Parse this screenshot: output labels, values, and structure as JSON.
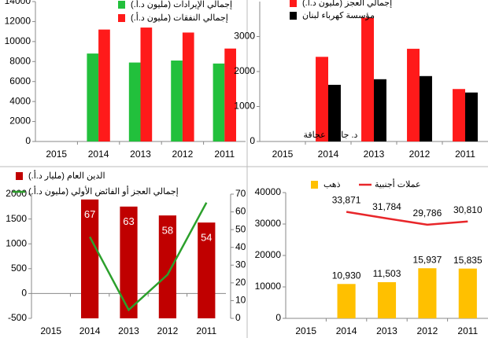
{
  "chart_data": [
    {
      "type": "bar",
      "categories": [
        "2015",
        "2014",
        "2013",
        "2012",
        "2011"
      ],
      "series": [
        {
          "name": "إجمالي الإيرادات (مليون د.أ.)",
          "color": "#22c03c",
          "values": [
            null,
            8800,
            7900,
            8100,
            7800
          ]
        },
        {
          "name": "إجمالي النفقات (مليون د.أ.)",
          "color": "#ff1a1a",
          "values": [
            null,
            11200,
            11400,
            10900,
            9300
          ]
        }
      ],
      "ylim": [
        0,
        14000
      ],
      "yticks": [
        0,
        2000,
        4000,
        6000,
        8000,
        10000,
        12000,
        14000
      ]
    },
    {
      "type": "bar",
      "categories": [
        "2015",
        "2014",
        "2013",
        "2012",
        "2011"
      ],
      "series": [
        {
          "name": "إجمالي العجز (مليون د.أ.)",
          "color": "#ff1a1a",
          "values": [
            null,
            2420,
            3540,
            2650,
            1500
          ]
        },
        {
          "name": "مؤسسة كهرباء لبنان",
          "color": "#000000",
          "values": [
            null,
            1620,
            1780,
            1870,
            1400
          ]
        }
      ],
      "ylim": [
        0,
        4000
      ],
      "yticks": [
        0,
        1000,
        2000,
        3000
      ],
      "annotation": "د. جاسم عجاقة"
    },
    {
      "type": "combo",
      "categories": [
        "2015",
        "2014",
        "2013",
        "2012",
        "2011"
      ],
      "series": [
        {
          "name": "الدين العام (مليار د.أ.)",
          "color": "#c00000",
          "kind": "bar",
          "axis": "y2",
          "values": [
            null,
            67,
            63,
            58,
            54
          ],
          "data_labels": true,
          "label_position": "inside"
        },
        {
          "name": "إجمالي العجز أو الفائض الأولي (مليون د.أ.)",
          "color": "#2ca02c",
          "kind": "line",
          "values": [
            null,
            1140,
            -330,
            380,
            1830
          ]
        }
      ],
      "ylim": [
        -500,
        2000
      ],
      "yticks": [
        -500,
        0,
        500,
        1000,
        1500,
        2000
      ],
      "y2lim": [
        0,
        70
      ],
      "y2ticks": [
        0,
        10,
        20,
        30,
        40,
        50,
        60,
        70
      ]
    },
    {
      "type": "combo",
      "categories": [
        "2015",
        "2014",
        "2013",
        "2012",
        "2011"
      ],
      "series": [
        {
          "name": "ذهب",
          "color": "#ffc000",
          "kind": "bar",
          "values": [
            null,
            10930,
            11503,
            15937,
            15835
          ],
          "value_labels": [
            null,
            "10,930",
            "11,503",
            "15,937",
            "15,835"
          ]
        },
        {
          "name": "عملات أجنبية",
          "color": "#e8262a",
          "kind": "line",
          "values": [
            null,
            33871,
            31784,
            29786,
            30810
          ],
          "value_labels": [
            null,
            "33,871",
            "31,784",
            "29,786",
            "30,810"
          ]
        }
      ],
      "ylim": [
        0,
        40000
      ],
      "yticks": [
        0,
        10000,
        20000,
        30000,
        40000
      ]
    }
  ]
}
